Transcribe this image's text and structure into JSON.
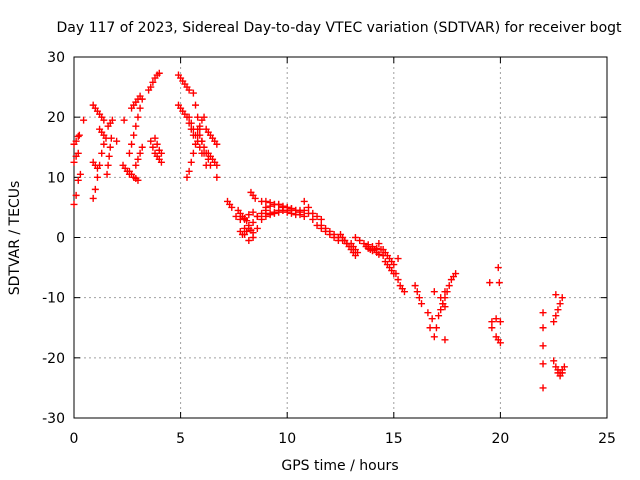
{
  "chart_data": {
    "type": "scatter",
    "title": "Day 117 of 2023, Sidereal Day-to-day VTEC variation (SDTVAR) for receiver bogt",
    "xlabel": "GPS time / hours",
    "ylabel": "SDTVAR / TECUs",
    "xlim": [
      0,
      25
    ],
    "ylim": [
      -30,
      30
    ],
    "xticks": [
      0,
      5,
      10,
      15,
      20,
      25
    ],
    "yticks": [
      -30,
      -20,
      -10,
      0,
      10,
      20,
      30
    ],
    "xtick_labels": [
      "0",
      "5",
      "10",
      "15",
      "20",
      "25"
    ],
    "ytick_labels": [
      "-30",
      "-20",
      "-10",
      "0",
      "10",
      "20",
      "30"
    ],
    "grid": true,
    "marker": "+",
    "color": "#ff0000",
    "series": [
      {
        "name": "t0",
        "x": [
          0.0,
          0.1,
          0.2,
          0.3
        ],
        "y": [
          5.5,
          7,
          9.5,
          10.5
        ]
      },
      {
        "name": "t1",
        "x": [
          0.0,
          0.1,
          0.2
        ],
        "y": [
          12.5,
          13.5,
          14
        ]
      },
      {
        "name": "t2",
        "x": [
          0.0,
          0.1,
          0.2,
          0.25
        ],
        "y": [
          15.5,
          16,
          16.8,
          17
        ]
      },
      {
        "name": "t3",
        "x": [
          0.45
        ],
        "y": [
          19.5
        ]
      },
      {
        "name": "t4",
        "x": [
          0.9,
          1.0,
          1.1,
          1.2,
          1.3,
          1.4
        ],
        "y": [
          6.5,
          8,
          10,
          12,
          14,
          15.5
        ]
      },
      {
        "name": "t5",
        "x": [
          0.9,
          1.0,
          1.1
        ],
        "y": [
          12.5,
          12,
          11.5
        ]
      },
      {
        "name": "t6",
        "x": [
          0.9,
          1.0,
          1.1,
          1.2,
          1.3,
          1.4
        ],
        "y": [
          22,
          21.5,
          21,
          20.5,
          20,
          19.5
        ]
      },
      {
        "name": "t7",
        "x": [
          1.2,
          1.3,
          1.4,
          1.5
        ],
        "y": [
          18,
          17.5,
          17,
          16.5
        ]
      },
      {
        "name": "t8",
        "x": [
          1.55,
          1.6,
          1.65,
          1.7,
          1.75
        ],
        "y": [
          10.5,
          12,
          13.5,
          15,
          16.5
        ]
      },
      {
        "name": "t9",
        "x": [
          1.6,
          1.7,
          1.8
        ],
        "y": [
          18.5,
          19,
          19.5
        ]
      },
      {
        "name": "t10",
        "x": [
          2.0
        ],
        "y": [
          16
        ]
      },
      {
        "name": "t11",
        "x": [
          2.3,
          2.4,
          2.5,
          2.6
        ],
        "y": [
          12,
          11.5,
          11,
          10.5
        ]
      },
      {
        "name": "t12",
        "x": [
          2.35
        ],
        "y": [
          19.5
        ]
      },
      {
        "name": "t13",
        "x": [
          2.6,
          2.7,
          2.8,
          2.9,
          3.0
        ],
        "y": [
          11,
          10.5,
          10,
          9.8,
          9.5
        ]
      },
      {
        "name": "t14",
        "x": [
          2.6,
          2.7,
          2.8,
          2.9,
          3.0,
          3.1,
          3.2
        ],
        "y": [
          14,
          15.5,
          17,
          18.5,
          20,
          21.5,
          23
        ]
      },
      {
        "name": "t15",
        "x": [
          2.7,
          2.8,
          2.9,
          3.0,
          3.1
        ],
        "y": [
          21.5,
          22,
          22.5,
          23,
          23.5
        ]
      },
      {
        "name": "t16",
        "x": [
          2.9,
          3.0,
          3.1,
          3.2
        ],
        "y": [
          12,
          13,
          14,
          15
        ]
      },
      {
        "name": "t17",
        "x": [
          3.5,
          3.6,
          3.7,
          3.8,
          3.9,
          4.0
        ],
        "y": [
          24.5,
          25,
          25.8,
          26.5,
          27,
          27.3
        ]
      },
      {
        "name": "t18",
        "x": [
          3.6,
          3.7,
          3.8,
          3.9,
          4.0,
          4.1
        ],
        "y": [
          16,
          15,
          14,
          13.5,
          13,
          12.5
        ]
      },
      {
        "name": "t19",
        "x": [
          3.8,
          3.9,
          4.0,
          4.1
        ],
        "y": [
          16.5,
          15.5,
          14.5,
          14
        ]
      },
      {
        "name": "t20",
        "x": [
          4.9,
          5.0,
          5.1,
          5.2,
          5.3,
          5.4
        ],
        "y": [
          27,
          26.5,
          26,
          25.5,
          25,
          24.5
        ]
      },
      {
        "name": "t21",
        "x": [
          4.9,
          5.0,
          5.1,
          5.2,
          5.3,
          5.4,
          5.5,
          5.6
        ],
        "y": [
          22,
          21.5,
          21,
          20.5,
          20,
          19,
          18,
          17
        ]
      },
      {
        "name": "t22",
        "x": [
          5.4,
          5.5,
          5.6,
          5.7,
          5.8,
          5.9,
          6.0
        ],
        "y": [
          20,
          19,
          18,
          17,
          16,
          15,
          14
        ]
      },
      {
        "name": "t23",
        "x": [
          5.3,
          5.4,
          5.5,
          5.6,
          5.7,
          5.8,
          5.9,
          6.0,
          6.1
        ],
        "y": [
          10,
          11,
          12.5,
          14,
          15.5,
          17,
          18.5,
          19.5,
          20
        ]
      },
      {
        "name": "t24",
        "x": [
          5.6,
          5.7,
          5.8,
          5.9,
          6.0,
          6.1,
          6.2
        ],
        "y": [
          24,
          22,
          20,
          18,
          16,
          14,
          12
        ]
      },
      {
        "name": "t25",
        "x": [
          5.8,
          5.9,
          6.0,
          6.1,
          6.2,
          6.3,
          6.4
        ],
        "y": [
          18,
          17,
          16,
          15,
          14,
          13,
          12
        ]
      },
      {
        "name": "t26",
        "x": [
          6.2,
          6.3,
          6.4,
          6.5,
          6.6,
          6.7
        ],
        "y": [
          18,
          17.5,
          17,
          16.5,
          16,
          15.5
        ]
      },
      {
        "name": "t27",
        "x": [
          6.3,
          6.4,
          6.5,
          6.6,
          6.7
        ],
        "y": [
          14,
          13.5,
          13,
          12.5,
          12
        ]
      },
      {
        "name": "t28",
        "x": [
          6.7
        ],
        "y": [
          10
        ]
      },
      {
        "name": "t29",
        "x": [
          7.2,
          7.3,
          7.4
        ],
        "y": [
          6,
          5.5,
          5
        ]
      },
      {
        "name": "t30",
        "x": [
          7.7,
          7.8,
          7.9,
          8.0,
          8.1
        ],
        "y": [
          4.5,
          4,
          3.5,
          3,
          2.8
        ]
      },
      {
        "name": "t31",
        "x": [
          7.6,
          7.8,
          8.0,
          8.2,
          8.4,
          8.6
        ],
        "y": [
          3.5,
          3,
          3.2,
          3.8,
          4.2,
          3.5
        ]
      },
      {
        "name": "t32",
        "x": [
          7.8,
          7.9,
          8.0,
          8.1,
          8.2,
          8.3,
          8.4
        ],
        "y": [
          1,
          0.5,
          0.5,
          1,
          1.5,
          1.2,
          0.8
        ]
      },
      {
        "name": "t33",
        "x": [
          8.0,
          8.2,
          8.4,
          8.6,
          8.8,
          9.0
        ],
        "y": [
          1.5,
          2,
          2.5,
          3.5,
          4,
          4.5
        ]
      },
      {
        "name": "t34",
        "x": [
          8.2,
          8.4,
          8.6,
          8.8,
          9.0
        ],
        "y": [
          -0.5,
          0,
          1.5,
          3,
          4
        ]
      },
      {
        "name": "t35",
        "x": [
          8.3,
          8.4,
          8.5
        ],
        "y": [
          7.5,
          7,
          6.5
        ]
      },
      {
        "name": "t36",
        "x": [
          8.8,
          9.0,
          9.2,
          9.4,
          9.6,
          9.8,
          10.0,
          10.2,
          10.4,
          10.6,
          10.8
        ],
        "y": [
          6,
          6,
          5.8,
          5.5,
          5.5,
          5,
          5,
          4.8,
          4.5,
          4.5,
          4.5
        ]
      },
      {
        "name": "t37",
        "x": [
          9.0,
          9.2,
          9.4,
          9.6,
          9.8,
          10.0,
          10.2,
          10.4,
          10.6
        ],
        "y": [
          5,
          5.2,
          5.5,
          5.5,
          5.2,
          5,
          4.8,
          4.5,
          4.2
        ]
      },
      {
        "name": "t38",
        "x": [
          9.2,
          9.4,
          9.6,
          9.8,
          10.0,
          10.2,
          10.4,
          10.6,
          10.8
        ],
        "y": [
          4,
          4.2,
          4.5,
          4.5,
          4.2,
          4,
          3.8,
          3.8,
          3.5
        ]
      },
      {
        "name": "t39",
        "x": [
          9.0,
          9.2,
          9.4,
          9.6,
          9.8,
          10.0
        ],
        "y": [
          3.5,
          3.8,
          4,
          4.2,
          4.5,
          4.5
        ]
      },
      {
        "name": "t40",
        "x": [
          10.8,
          11.0,
          11.2,
          11.4,
          11.6
        ],
        "y": [
          6,
          5,
          4,
          3.5,
          3
        ]
      },
      {
        "name": "t41",
        "x": [
          11.0,
          11.2,
          11.4,
          11.6,
          11.8,
          12.0,
          12.2,
          12.4
        ],
        "y": [
          4,
          3,
          2,
          1.5,
          1,
          0.5,
          0,
          -0.5
        ]
      },
      {
        "name": "t42",
        "x": [
          11.6,
          11.8,
          12.0,
          12.2,
          12.4,
          12.6,
          12.8
        ],
        "y": [
          2,
          1.5,
          1,
          0.5,
          0,
          -0.5,
          -1
        ]
      },
      {
        "name": "t43",
        "x": [
          12.5,
          12.6,
          12.7,
          12.8,
          12.9,
          13.0,
          13.1,
          13.2
        ],
        "y": [
          0.5,
          0,
          -0.5,
          -1,
          -1.5,
          -2,
          -2.5,
          -3
        ]
      },
      {
        "name": "t44",
        "x": [
          13.0,
          13.1,
          13.2,
          13.3
        ],
        "y": [
          -1,
          -1.5,
          -2,
          -2.5
        ]
      },
      {
        "name": "t45",
        "x": [
          13.2,
          13.4,
          13.6,
          13.8,
          14.0,
          14.2
        ],
        "y": [
          0,
          -0.5,
          -1,
          -1.2,
          -1.5,
          -1.8
        ]
      },
      {
        "name": "t46",
        "x": [
          13.7,
          13.8,
          13.9,
          14.0,
          14.1,
          14.2,
          14.3
        ],
        "y": [
          -1.5,
          -1.8,
          -2,
          -2.2,
          -2,
          -2.5,
          -2.8
        ]
      },
      {
        "name": "t47",
        "x": [
          14.3,
          14.4,
          14.5,
          14.6,
          14.7,
          14.8,
          14.9,
          15.0
        ],
        "y": [
          -1,
          -2,
          -3,
          -4,
          -4.5,
          -5,
          -5.5,
          -6
        ]
      },
      {
        "name": "t48",
        "x": [
          14.5,
          14.6,
          14.7,
          14.8,
          14.9,
          15.0
        ],
        "y": [
          -2,
          -2.5,
          -3,
          -3.5,
          -4,
          -4.5
        ]
      },
      {
        "name": "t49",
        "x": [
          15.1,
          15.2,
          15.3,
          15.4,
          15.5
        ],
        "y": [
          -6,
          -7,
          -8,
          -8.5,
          -9
        ]
      },
      {
        "name": "t50",
        "x": [
          15.2
        ],
        "y": [
          -3.5
        ]
      },
      {
        "name": "t51",
        "x": [
          16.0,
          16.1,
          16.2,
          16.3
        ],
        "y": [
          -8,
          -9,
          -10,
          -11
        ]
      },
      {
        "name": "t52",
        "x": [
          16.6,
          16.8,
          17.0
        ],
        "y": [
          -12.5,
          -13.5,
          -15
        ]
      },
      {
        "name": "t53",
        "x": [
          16.7
        ],
        "y": [
          -15
        ]
      },
      {
        "name": "t54",
        "x": [
          16.9
        ],
        "y": [
          -9
        ]
      },
      {
        "name": "t55",
        "x": [
          16.9
        ],
        "y": [
          -16.5
        ]
      },
      {
        "name": "t56",
        "x": [
          17.1,
          17.2,
          17.3,
          17.4,
          17.5,
          17.6,
          17.7,
          17.8,
          17.9
        ],
        "y": [
          -13,
          -12,
          -11,
          -10,
          -9,
          -8,
          -7,
          -6.5,
          -6
        ]
      },
      {
        "name": "t57",
        "x": [
          17.2,
          17.3,
          17.4
        ],
        "y": [
          -10,
          -11,
          -11.5
        ]
      },
      {
        "name": "t58",
        "x": [
          17.4
        ],
        "y": [
          -9
        ]
      },
      {
        "name": "t59",
        "x": [
          17.4
        ],
        "y": [
          -17
        ]
      },
      {
        "name": "t60",
        "x": [
          19.5
        ],
        "y": [
          -7.5
        ]
      },
      {
        "name": "t61",
        "x": [
          19.6,
          19.8,
          20.0
        ],
        "y": [
          -14,
          -13.5,
          -14
        ]
      },
      {
        "name": "t62",
        "x": [
          19.6
        ],
        "y": [
          -15
        ]
      },
      {
        "name": "t63",
        "x": [
          19.8,
          19.9,
          20.0
        ],
        "y": [
          -16.5,
          -17,
          -17.5
        ]
      },
      {
        "name": "t64",
        "x": [
          19.9
        ],
        "y": [
          -5
        ]
      },
      {
        "name": "t65",
        "x": [
          19.95
        ],
        "y": [
          -7.5
        ]
      },
      {
        "name": "t66",
        "x": [
          22.0
        ],
        "y": [
          -12.5
        ]
      },
      {
        "name": "t67",
        "x": [
          22.0
        ],
        "y": [
          -15
        ]
      },
      {
        "name": "t68",
        "x": [
          22.0
        ],
        "y": [
          -18
        ]
      },
      {
        "name": "t69",
        "x": [
          22.0
        ],
        "y": [
          -21
        ]
      },
      {
        "name": "t70",
        "x": [
          22.0
        ],
        "y": [
          -25
        ]
      },
      {
        "name": "t71",
        "x": [
          22.5,
          22.6,
          22.7,
          22.8,
          22.9
        ],
        "y": [
          -14,
          -13,
          -12,
          -11,
          -10
        ]
      },
      {
        "name": "t72",
        "x": [
          22.6
        ],
        "y": [
          -9.5
        ]
      },
      {
        "name": "t73",
        "x": [
          22.5,
          22.6,
          22.7,
          22.8,
          22.9
        ],
        "y": [
          -20.5,
          -21.5,
          -22.5,
          -23,
          -22.5
        ]
      },
      {
        "name": "t74",
        "x": [
          22.7,
          22.8,
          22.9,
          23.0
        ],
        "y": [
          -22,
          -22.5,
          -22,
          -21.5
        ]
      }
    ]
  }
}
